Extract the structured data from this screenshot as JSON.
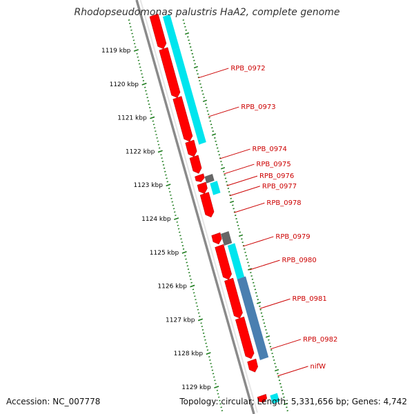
{
  "title": "Rhodopseudomonas palustris HaA2, complete genome",
  "footer": {
    "accession": "Accession: NC_007778",
    "topology": "Topology: circular; Length: 5,331,656 bp; Genes: 4,742"
  },
  "colors": {
    "forward_gene": "#ff0000",
    "cds_cyan": "#00e5ee",
    "cds_blue": "#4a7fb0",
    "pseudo_gray": "#666666",
    "backbone": "#8a8a8a",
    "tick_green": "#1a7a1a",
    "label_red": "#cc0000"
  },
  "scale_labels": [
    {
      "kb": 1119,
      "text": "1119 kbp"
    },
    {
      "kb": 1120,
      "text": "1120 kbp"
    },
    {
      "kb": 1121,
      "text": "1121 kbp"
    },
    {
      "kb": 1122,
      "text": "1122 kbp"
    },
    {
      "kb": 1123,
      "text": "1123 kbp"
    },
    {
      "kb": 1124,
      "text": "1124 kbp"
    },
    {
      "kb": 1125,
      "text": "1125 kbp"
    },
    {
      "kb": 1126,
      "text": "1126 kbp"
    },
    {
      "kb": 1127,
      "text": "1127 kbp"
    },
    {
      "kb": 1128,
      "text": "1128 kbp"
    },
    {
      "kb": 1129,
      "text": "1129 kbp"
    }
  ],
  "gene_labels": [
    {
      "name": "RPB_0972",
      "at_kb": 1119.45
    },
    {
      "name": "RPB_0973",
      "at_kb": 1120.6
    },
    {
      "name": "RPB_0974",
      "at_kb": 1121.85
    },
    {
      "name": "RPB_0975",
      "at_kb": 1122.3
    },
    {
      "name": "RPB_0976",
      "at_kb": 1122.65
    },
    {
      "name": "RPB_0977",
      "at_kb": 1122.95
    },
    {
      "name": "RPB_0978",
      "at_kb": 1123.45
    },
    {
      "name": "RPB_0979",
      "at_kb": 1124.45
    },
    {
      "name": "RPB_0980",
      "at_kb": 1125.15
    },
    {
      "name": "RPB_0981",
      "at_kb": 1126.3
    },
    {
      "name": "RPB_0982",
      "at_kb": 1127.5
    },
    {
      "name": "nifW",
      "at_kb": 1128.3
    }
  ],
  "features": [
    {
      "track": "red",
      "start_kb": 1118.0,
      "end_kb": 1119.0
    },
    {
      "track": "red",
      "start_kb": 1119.0,
      "end_kb": 1120.45
    },
    {
      "track": "red",
      "start_kb": 1120.45,
      "end_kb": 1121.75
    },
    {
      "track": "red",
      "start_kb": 1121.75,
      "end_kb": 1122.2
    },
    {
      "track": "red",
      "start_kb": 1122.2,
      "end_kb": 1122.7
    },
    {
      "track": "red",
      "start_kb": 1122.75,
      "end_kb": 1122.95
    },
    {
      "track": "red",
      "start_kb": 1123.0,
      "end_kb": 1123.3
    },
    {
      "track": "red",
      "start_kb": 1123.3,
      "end_kb": 1124.0
    },
    {
      "track": "red",
      "start_kb": 1124.5,
      "end_kb": 1124.8
    },
    {
      "track": "red",
      "start_kb": 1124.85,
      "end_kb": 1125.85
    },
    {
      "track": "red",
      "start_kb": 1125.85,
      "end_kb": 1127.0
    },
    {
      "track": "red",
      "start_kb": 1127.0,
      "end_kb": 1128.2
    },
    {
      "track": "red",
      "start_kb": 1128.25,
      "end_kb": 1128.6
    },
    {
      "track": "red",
      "start_kb": 1129.3,
      "end_kb": 1129.5
    },
    {
      "track": "cyan",
      "start_kb": 1118.0,
      "end_kb": 1119.0
    },
    {
      "track": "cyan",
      "start_kb": 1119.0,
      "end_kb": 1121.8
    },
    {
      "track": "cyan",
      "start_kb": 1122.95,
      "end_kb": 1123.3
    },
    {
      "track": "cyan",
      "start_kb": 1124.8,
      "end_kb": 1125.8
    },
    {
      "track": "cyan",
      "start_kb": 1129.25,
      "end_kb": 1129.5
    },
    {
      "track": "blue",
      "start_kb": 1125.8,
      "end_kb": 1128.2
    },
    {
      "track": "gray",
      "start_kb": 1122.75,
      "end_kb": 1122.95
    },
    {
      "track": "gray",
      "start_kb": 1124.45,
      "end_kb": 1124.8
    }
  ]
}
